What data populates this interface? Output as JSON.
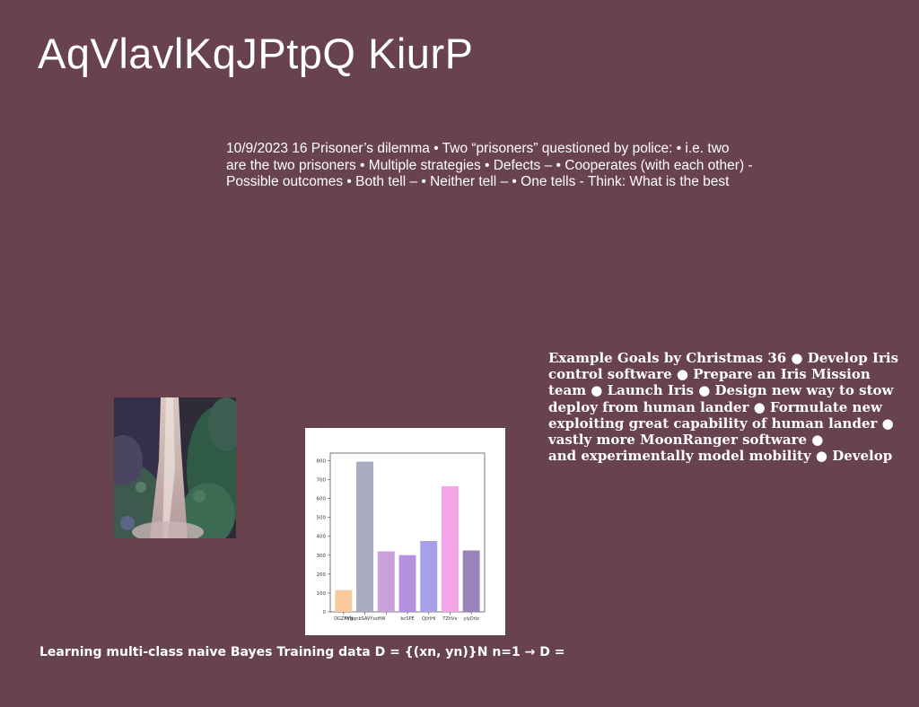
{
  "slide": {
    "title": "AqVlavlKqJPtpQ KiurP",
    "body_lines": [
      "10/9/2023 16 Prisoner’s dilemma • Two “prisoners” questioned by police: • i.e. two",
      "are the two prisoners • Multiple strategies • Defects – • Cooperates (with each other) -",
      "Possible outcomes • Both tell – • Neither tell – • One tells - Think: What is the best"
    ],
    "goals_lines": [
      "Example Goals by Christmas 36 ● Develop Iris",
      "control software ● Prepare an Iris Mission",
      "team ● Launch Iris ● Design new way to stow",
      "deploy from human lander ● Formulate new",
      "exploiting great capability of human lander ●",
      "vastly more MoonRanger software ●",
      "and experimentally model mobility ● Develop"
    ],
    "footer": "Learning multi-class naive Bayes Training data D = {(xn, yn)}N n=1 → D ="
  },
  "chart_data": {
    "type": "bar",
    "categories": [
      "DGZPVN",
      "hYgqnbSAVYssHW",
      "",
      "bcSPE",
      "QjlrlHi",
      "TZhVx",
      "yiyDrlz"
    ],
    "values": [
      115,
      795,
      320,
      300,
      375,
      665,
      325
    ],
    "colors": [
      "#f8c99d",
      "#a9abbe",
      "#c9a0d7",
      "#b490de",
      "#a79fe8",
      "#f4a6e8",
      "#9a83b8"
    ],
    "yticks": [
      0,
      100,
      200,
      300,
      400,
      500,
      600,
      700,
      800
    ],
    "ylim": [
      0,
      840
    ],
    "title": "",
    "xlabel": "",
    "ylabel": ""
  }
}
